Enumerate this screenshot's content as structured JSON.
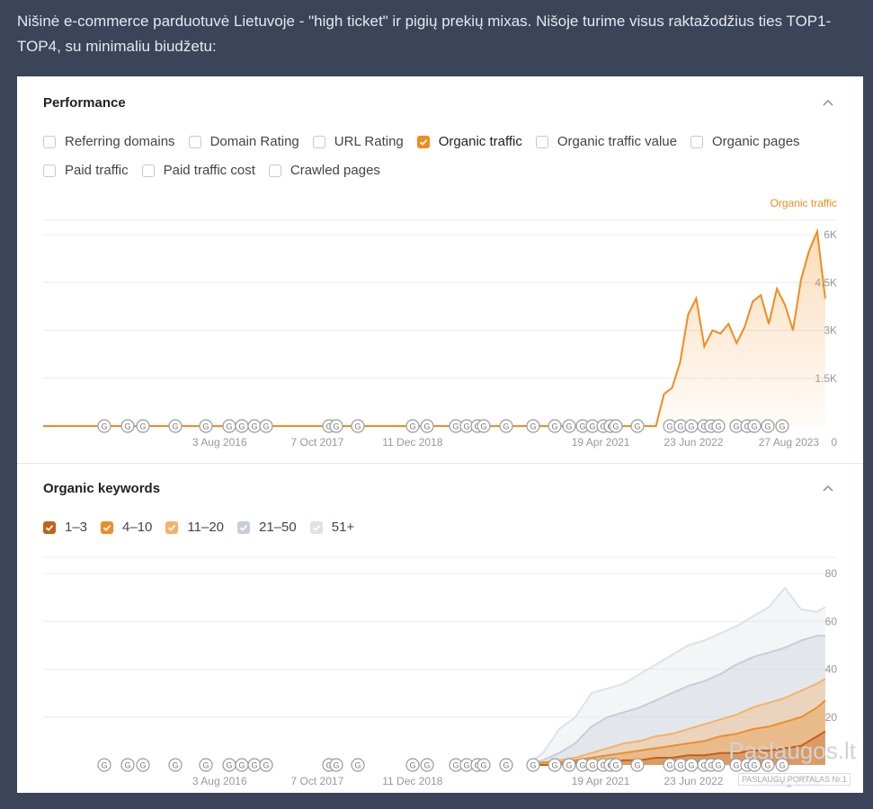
{
  "intro_text": "Nišinė e-commerce parduotuvė Lietuvoje - \"high ticket\" ir pigių prekių mixas. Nišoje turime visus raktažodžius ties TOP1-TOP4, su minimaliu biudžetu:",
  "performance": {
    "title": "Performance",
    "checkboxes": [
      {
        "label": "Referring domains",
        "checked": false
      },
      {
        "label": "Domain Rating",
        "checked": false
      },
      {
        "label": "URL Rating",
        "checked": false
      },
      {
        "label": "Organic traffic",
        "checked": true
      },
      {
        "label": "Organic traffic value",
        "checked": false
      },
      {
        "label": "Organic pages",
        "checked": false
      },
      {
        "label": "Paid traffic",
        "checked": false
      },
      {
        "label": "Paid traffic cost",
        "checked": false
      },
      {
        "label": "Crawled pages",
        "checked": false
      }
    ]
  },
  "keywords": {
    "title": "Organic keywords",
    "checkboxes": [
      {
        "label": "1–3",
        "checked": true,
        "color": "#c3601a"
      },
      {
        "label": "4–10",
        "checked": true,
        "color": "#ec8d2c"
      },
      {
        "label": "11–20",
        "checked": true,
        "color": "#f5b266"
      },
      {
        "label": "21–50",
        "checked": true,
        "color": "#c7ced8"
      },
      {
        "label": "51+",
        "checked": true,
        "color": "#dde2e9"
      }
    ]
  },
  "chart_data": [
    {
      "type": "area",
      "series_label": "Organic traffic",
      "color": "#f08c1d",
      "x_ticks": [
        "3 Aug 2016",
        "7 Oct 2017",
        "11 Dec 2018",
        "19 Apr 2021",
        "23 Jun 2022",
        "27 Aug 2023"
      ],
      "y_ticks": [
        "6K",
        "4.5K",
        "3K",
        "1.5K",
        "0"
      ],
      "ylim": [
        0,
        6000
      ],
      "xlim": [
        "2015-08-01",
        "2023-10-15"
      ],
      "x": [
        "2015-08",
        "2021-12",
        "2022-01",
        "2022-02",
        "2022-03",
        "2022-04",
        "2022-05",
        "2022-06",
        "2022-07",
        "2022-08",
        "2022-09",
        "2022-10",
        "2022-11",
        "2022-12",
        "2023-01",
        "2023-02",
        "2023-03",
        "2023-04",
        "2023-05",
        "2023-06",
        "2023-07",
        "2023-08",
        "2023-09"
      ],
      "values": [
        0,
        0,
        1000,
        1200,
        2000,
        3500,
        4000,
        2500,
        3000,
        2900,
        3200,
        2600,
        3100,
        3900,
        4100,
        3200,
        4300,
        3800,
        3000,
        4600,
        5500,
        6100,
        4000
      ]
    },
    {
      "type": "area",
      "x_ticks": [
        "3 Aug 2016",
        "7 Oct 2017",
        "11 Dec 2018",
        "19 Apr 2021",
        "23 Jun 2022",
        "27 Aug 2023"
      ],
      "y_ticks": [
        "80",
        "60",
        "40",
        "20"
      ],
      "ylim": [
        0,
        80
      ],
      "xlim": [
        "2015-08-01",
        "2023-10-15"
      ],
      "x": [
        "2020-08",
        "2020-10",
        "2020-12",
        "2021-02",
        "2021-04",
        "2021-06",
        "2021-08",
        "2021-10",
        "2021-12",
        "2022-02",
        "2022-04",
        "2022-06",
        "2022-08",
        "2022-10",
        "2022-12",
        "2023-02",
        "2023-04",
        "2023-06",
        "2023-08",
        "2023-09"
      ],
      "series": [
        {
          "name": "1–3",
          "color": "#c3601a",
          "values": [
            0,
            0,
            0,
            1,
            1,
            1,
            2,
            2,
            3,
            3,
            4,
            4,
            5,
            5,
            6,
            6,
            7,
            8,
            12,
            14
          ]
        },
        {
          "name": "4–10",
          "color": "#ec8d2c",
          "values": [
            0,
            1,
            1,
            2,
            3,
            4,
            5,
            6,
            7,
            8,
            9,
            10,
            12,
            13,
            15,
            16,
            18,
            20,
            24,
            27
          ]
        },
        {
          "name": "11–20",
          "color": "#f5b266",
          "values": [
            0,
            1,
            2,
            3,
            5,
            7,
            9,
            10,
            12,
            13,
            15,
            17,
            19,
            21,
            24,
            26,
            28,
            31,
            34,
            36
          ]
        },
        {
          "name": "21–50",
          "color": "#c7ced8",
          "values": [
            0,
            2,
            5,
            9,
            16,
            20,
            22,
            24,
            27,
            30,
            33,
            35,
            38,
            42,
            45,
            47,
            49,
            52,
            54,
            54
          ]
        },
        {
          "name": "51+",
          "color": "#dde2e9",
          "values": [
            0,
            5,
            15,
            20,
            30,
            32,
            34,
            38,
            42,
            46,
            50,
            52,
            55,
            58,
            62,
            66,
            74,
            65,
            64,
            66
          ]
        }
      ]
    }
  ],
  "watermark": {
    "text": "Paslaugos.lt",
    "sub": "PASLAUGŲ PORTALAS Nr.1"
  }
}
